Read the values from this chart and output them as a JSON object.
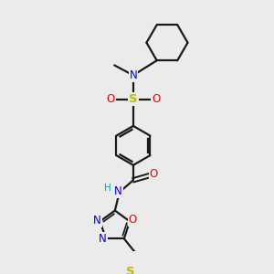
{
  "background_color": "#ebebeb",
  "bond_color": "#1a1a1a",
  "atom_colors": {
    "N": "#0000ee",
    "O": "#ee0000",
    "S_sulfonyl": "#bbbb00",
    "S_thio": "#bbbb00",
    "H": "#00aaaa",
    "C": "#1a1a1a"
  },
  "figsize": [
    3.0,
    3.0
  ],
  "dpi": 100
}
